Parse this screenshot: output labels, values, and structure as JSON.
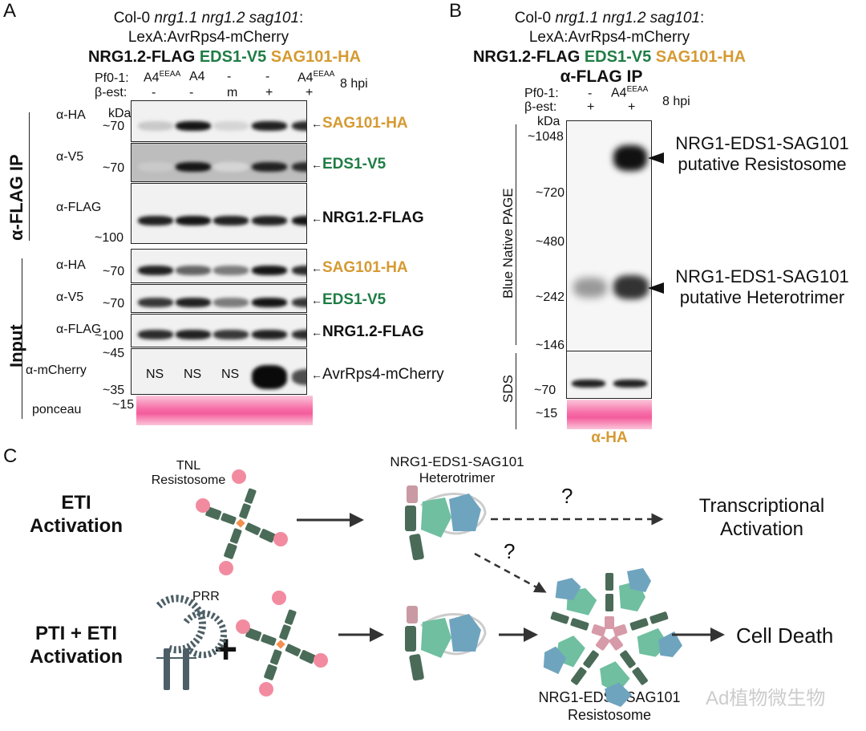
{
  "panel_a": {
    "letter": "A",
    "header": {
      "line1_prefix": "Col-0 ",
      "line1_italic": "nrg1.1 nrg1.2 sag101",
      "line1_suffix": ":",
      "line2": "LexA:AvrRps4-mCherry",
      "constructs": {
        "flag": "NRG1.2-FLAG",
        "v5": "EDS1-V5",
        "ha": "SAG101-HA"
      }
    },
    "conditions": {
      "pf_label": "Pf0-1:",
      "pf_values": [
        {
          "base": "A4",
          "sup": "EEAA"
        },
        {
          "base": "A4",
          "sup": ""
        },
        {
          "base": "-",
          "sup": ""
        },
        {
          "base": "-",
          "sup": ""
        },
        {
          "base": "A4",
          "sup": "EEAA"
        }
      ],
      "est_label": "β-est:",
      "est_values": [
        "-",
        "-",
        "m",
        "+",
        "+"
      ],
      "time": "8 hpi"
    },
    "sections": {
      "ip": "α-FLAG IP",
      "input": "Input"
    },
    "kda_label": "kDa",
    "blots": [
      {
        "section": "ip",
        "antibody": "α-HA",
        "marker": "~70",
        "target": "SAG101-HA",
        "color": "orange",
        "intensities": [
          0.15,
          0.95,
          0.1,
          0.9,
          0.85
        ]
      },
      {
        "section": "ip",
        "antibody": "α-V5",
        "marker": "~70",
        "target": "EDS1-V5",
        "color": "green",
        "intensities": [
          0.15,
          0.95,
          0.1,
          0.9,
          0.85
        ]
      },
      {
        "section": "ip",
        "antibody": "α-FLAG",
        "marker": "~100",
        "target": "NRG1.2-FLAG",
        "color": "black",
        "intensities": [
          0.9,
          0.95,
          0.9,
          0.9,
          0.95
        ]
      },
      {
        "section": "input",
        "antibody": "α-HA",
        "marker": "~70",
        "target": "SAG101-HA",
        "color": "orange",
        "intensities": [
          0.9,
          0.6,
          0.5,
          0.95,
          0.85
        ]
      },
      {
        "section": "input",
        "antibody": "α-V5",
        "marker": "~70",
        "target": "EDS1-V5",
        "color": "green",
        "intensities": [
          0.8,
          0.9,
          0.5,
          0.95,
          0.8
        ]
      },
      {
        "section": "input",
        "antibody": "α-FLAG",
        "marker": "~100",
        "target": "NRG1.2-FLAG",
        "color": "black",
        "intensities": [
          0.85,
          0.9,
          0.8,
          0.9,
          0.85
        ]
      },
      {
        "section": "input",
        "antibody": "α-mCherry",
        "marker_top": "~45",
        "marker_bottom": "~35",
        "target": "AvrRps4-mCherry",
        "color": "black",
        "lane_text": [
          "NS",
          "NS",
          "NS",
          "",
          ""
        ],
        "intensities": [
          0,
          0,
          0,
          1.0,
          0.7
        ]
      },
      {
        "section": "input",
        "antibody": "ponceau",
        "marker": "~15"
      }
    ]
  },
  "panel_b": {
    "letter": "B",
    "header": {
      "line1_prefix": "Col-0 ",
      "line1_italic": "nrg1.1 nrg1.2 sag101",
      "line1_suffix": ":",
      "line2": "LexA:AvrRps4-mCherry",
      "constructs": {
        "flag": "NRG1.2-FLAG",
        "v5": "EDS1-V5",
        "ha": "SAG101-HA"
      },
      "ip": "α-FLAG IP"
    },
    "conditions": {
      "pf_label": "Pf0-1:",
      "pf_values": [
        {
          "base": "-",
          "sup": ""
        },
        {
          "base": "A4",
          "sup": "EEAA"
        }
      ],
      "est_label": "β-est:",
      "est_values": [
        "+",
        "+"
      ],
      "time": "8 hpi"
    },
    "kda_label": "kDa",
    "bn_label": "Blue Native PAGE",
    "sds_label": "SDS",
    "bn_markers": [
      "~1048",
      "~720",
      "~480",
      "~242",
      "~146"
    ],
    "sds_marker": "~70",
    "ponceau_marker": "~15",
    "antibody": "α-HA",
    "annotations": [
      {
        "line1": "NRG1-EDS1-SAG101",
        "line2": "putative Resistosome"
      },
      {
        "line1": "NRG1-EDS1-SAG101",
        "line2": "putative Heterotrimer"
      }
    ]
  },
  "panel_c": {
    "letter": "C",
    "rows": [
      {
        "label_line1": "ETI",
        "label_line2": "Activation"
      },
      {
        "label_line1": "PTI + ETI",
        "label_line2": "Activation"
      }
    ],
    "tnl_label_line1": "TNL",
    "tnl_label_line2": "Resistosome",
    "prr_label": "PRR",
    "plus": "+",
    "heterotrimer_line1": "NRG1-EDS1-SAG101",
    "heterotrimer_line2": "Heterotrimer",
    "question": "?",
    "transcription_line1": "Transcriptional",
    "transcription_line2": "Activation",
    "cell_death": "Cell Death",
    "resistosome_line1": "NRG1-EDS1-SAG101",
    "resistosome_line2": "Resistosome",
    "colors": {
      "dark_green": "#4a6b58",
      "pink": "#f28ba0",
      "orange": "#f4904f",
      "teal": "#6fbfa0",
      "blue": "#6fa4bf",
      "mauve": "#c99aa3",
      "prr": "#4d5e66"
    }
  },
  "watermark": "Ad植物微生物"
}
